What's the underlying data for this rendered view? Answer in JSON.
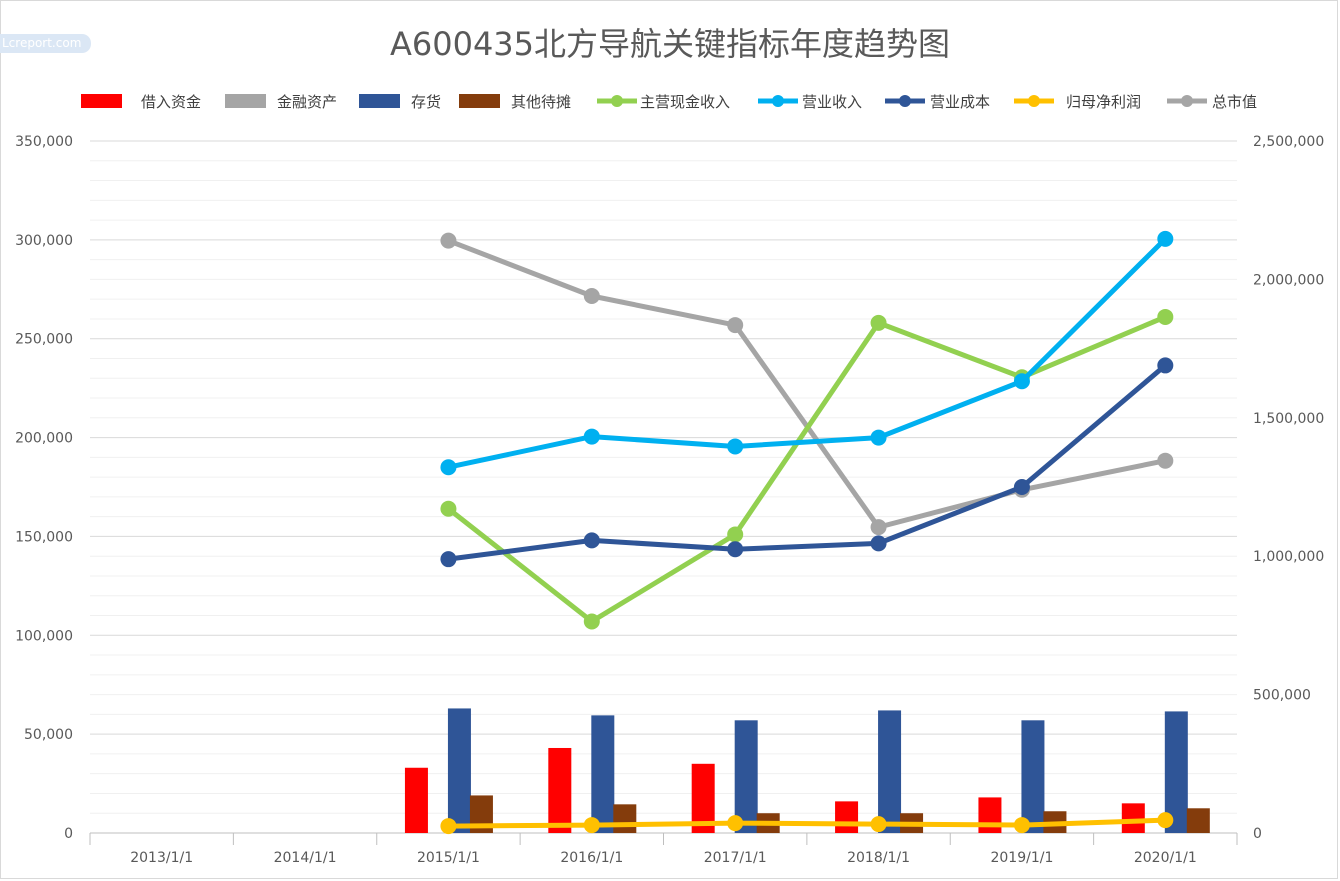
{
  "watermark": "Lcreport.com",
  "chart_data": {
    "type": "bar",
    "title": "A600435北方导航关键指标年度趋势图",
    "xlabel": "",
    "ylabel": "",
    "categories": [
      "2013/1/1",
      "2014/1/1",
      "2015/1/1",
      "2016/1/1",
      "2017/1/1",
      "2018/1/1",
      "2019/1/1",
      "2020/1/1"
    ],
    "y_left": {
      "min": 0,
      "max": 350000,
      "ticks": [
        0,
        50000,
        100000,
        150000,
        200000,
        250000,
        300000,
        350000
      ],
      "tick_labels": [
        "0",
        "50,000",
        "100,000",
        "150,000",
        "200,000",
        "250,000",
        "300,000",
        "350,000"
      ]
    },
    "y_right": {
      "min": 0,
      "max": 2500000,
      "ticks": [
        0,
        500000,
        1000000,
        1500000,
        2000000,
        2500000
      ],
      "tick_labels": [
        "0",
        "500,000",
        "1,000,000",
        "1,500,000",
        "2,000,000",
        "2,500,000"
      ]
    },
    "grid": true,
    "legend_position": "top",
    "series": [
      {
        "name": "借入资金",
        "kind": "bar",
        "axis": "left",
        "color": "#ff0000",
        "values": [
          null,
          null,
          33000,
          43000,
          35000,
          16000,
          18000,
          15000
        ]
      },
      {
        "name": "金融资产",
        "kind": "bar",
        "axis": "left",
        "color": "#a5a5a5",
        "values": [
          null,
          null,
          0,
          0,
          0,
          0,
          0,
          0
        ]
      },
      {
        "name": "存货",
        "kind": "bar",
        "axis": "left",
        "color": "#2f5597",
        "values": [
          null,
          null,
          63000,
          59500,
          57000,
          62000,
          57000,
          61500
        ]
      },
      {
        "name": "其他待摊",
        "kind": "bar",
        "axis": "left",
        "color": "#843c0c",
        "values": [
          null,
          null,
          19000,
          14500,
          10000,
          10000,
          11000,
          12500
        ]
      },
      {
        "name": "主营现金收入",
        "kind": "line",
        "axis": "left",
        "color": "#92d050",
        "values": [
          null,
          null,
          164000,
          107000,
          151000,
          258000,
          230500,
          261000
        ]
      },
      {
        "name": "营业收入",
        "kind": "line",
        "axis": "left",
        "color": "#00b0f0",
        "values": [
          null,
          null,
          185000,
          200500,
          195500,
          200000,
          228500,
          300500
        ]
      },
      {
        "name": "营业成本",
        "kind": "line",
        "axis": "left",
        "color": "#2f5597",
        "values": [
          null,
          null,
          138500,
          148000,
          143500,
          146500,
          175000,
          236500
        ]
      },
      {
        "name": "归母净利润",
        "kind": "line",
        "axis": "left",
        "color": "#ffc000",
        "values": [
          null,
          null,
          3500,
          4000,
          5000,
          4500,
          4000,
          6500
        ]
      },
      {
        "name": "总市值",
        "kind": "line",
        "axis": "right",
        "color": "#a5a5a5",
        "values": [
          null,
          null,
          2140000,
          1940000,
          1835000,
          1105000,
          1240000,
          1345000
        ]
      }
    ]
  }
}
